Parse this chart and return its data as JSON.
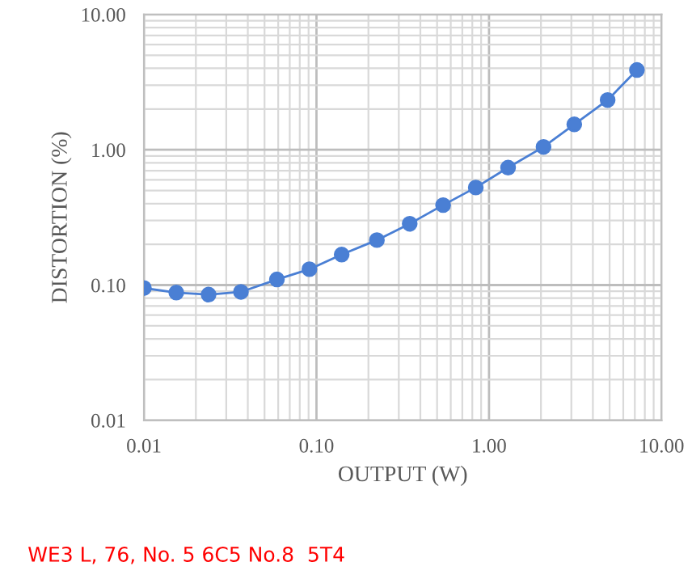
{
  "chart_data": {
    "type": "line",
    "xlabel": "OUTPUT (W)",
    "ylabel": "DISTORTION (%)",
    "x": [
      0.01,
      0.0154,
      0.0237,
      0.0365,
      0.059,
      0.091,
      0.14,
      0.224,
      0.347,
      0.542,
      0.838,
      1.29,
      2.07,
      3.12,
      4.87,
      7.2
    ],
    "series": [
      {
        "color": "#4a7fd4",
        "values": [
          0.095,
          0.088,
          0.085,
          0.089,
          0.11,
          0.131,
          0.168,
          0.215,
          0.284,
          0.39,
          0.526,
          0.738,
          1.05,
          1.54,
          2.33,
          3.89
        ]
      }
    ],
    "log": "xy",
    "xlim": [
      0.01,
      10
    ],
    "ylim": [
      0.01,
      10
    ],
    "xticks": [
      {
        "value": 0.01,
        "label": "0.01"
      },
      {
        "value": 0.1,
        "label": "0.10"
      },
      {
        "value": 1,
        "label": "1.00"
      },
      {
        "value": 10,
        "label": "10.00"
      }
    ],
    "yticks": [
      {
        "value": 0.01,
        "label": "0.01"
      },
      {
        "value": 0.1,
        "label": "0.10"
      },
      {
        "value": 1,
        "label": "1.00"
      },
      {
        "value": 10,
        "label": "10.00"
      }
    ],
    "grid": true,
    "marker": "circle",
    "line_style": "solid",
    "legend": false,
    "annotations": [
      "WE3 L, 76, No. 5 6C5 No.8  5T4"
    ]
  }
}
